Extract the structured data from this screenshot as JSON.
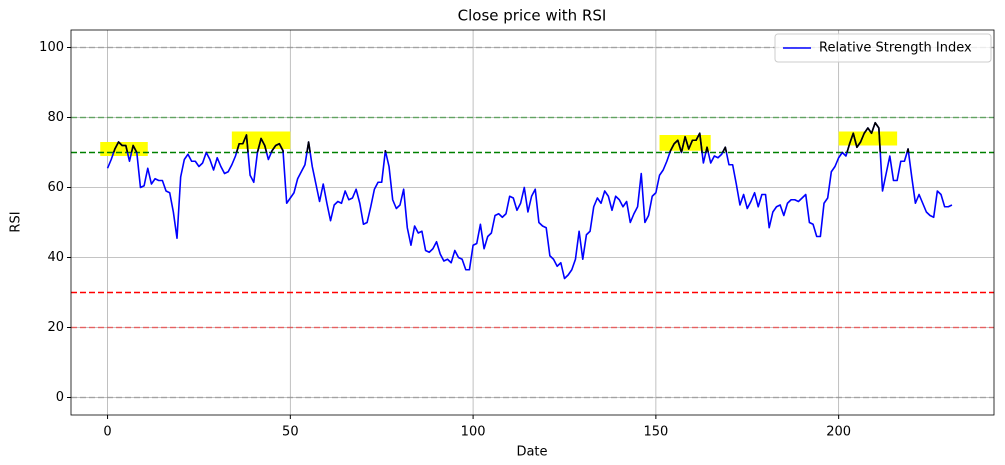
{
  "chart_data": {
    "type": "line",
    "title": "Close price with RSI",
    "x_label": "Date",
    "y_label": "RSI",
    "x": [
      0,
      1,
      2,
      3,
      4,
      5,
      6,
      7,
      8,
      9,
      10,
      11,
      12,
      13,
      14,
      15,
      16,
      17,
      18,
      19,
      20,
      21,
      22,
      23,
      24,
      25,
      26,
      27,
      28,
      29,
      30,
      31,
      32,
      33,
      34,
      35,
      36,
      37,
      38,
      39,
      40,
      41,
      42,
      43,
      44,
      45,
      46,
      47,
      48,
      49,
      50,
      51,
      52,
      53,
      54,
      55,
      56,
      57,
      58,
      59,
      60,
      61,
      62,
      63,
      64,
      65,
      66,
      67,
      68,
      69,
      70,
      71,
      72,
      73,
      74,
      75,
      76,
      77,
      78,
      79,
      80,
      81,
      82,
      83,
      84,
      85,
      86,
      87,
      88,
      89,
      90,
      91,
      92,
      93,
      94,
      95,
      96,
      97,
      98,
      99,
      100,
      101,
      102,
      103,
      104,
      105,
      106,
      107,
      108,
      109,
      110,
      111,
      112,
      113,
      114,
      115,
      116,
      117,
      118,
      119,
      120,
      121,
      122,
      123,
      124,
      125,
      126,
      127,
      128,
      129,
      130,
      131,
      132,
      133,
      134,
      135,
      136,
      137,
      138,
      139,
      140,
      141,
      142,
      143,
      144,
      145,
      146,
      147,
      148,
      149,
      150,
      151,
      152,
      153,
      154,
      155,
      156,
      157,
      158,
      159,
      160,
      161,
      162,
      163,
      164,
      165,
      166,
      167,
      168,
      169,
      170,
      171,
      172,
      173,
      174,
      175,
      176,
      177,
      178,
      179,
      180,
      181,
      182,
      183,
      184,
      185,
      186,
      187,
      188,
      189,
      190,
      191,
      192,
      193,
      194,
      195,
      196,
      197,
      198,
      199,
      200,
      201,
      202,
      203,
      204,
      205,
      206,
      207,
      208,
      209,
      210,
      211,
      212,
      213,
      214,
      215,
      216,
      217,
      218,
      219,
      220,
      221,
      222,
      223,
      224,
      225,
      226,
      227,
      228,
      229,
      230,
      231
    ],
    "series": [
      {
        "name": "Relative Strength Index",
        "color": "#0000ff",
        "values": [
          65.5,
          68,
          71,
          73,
          72,
          72,
          67.5,
          72,
          70,
          60,
          60.5,
          65.5,
          61,
          62.5,
          62,
          62,
          59,
          58.5,
          53,
          45.5,
          63,
          68,
          69.5,
          67.5,
          67.5,
          66,
          67,
          70,
          68,
          65,
          68.5,
          66,
          64,
          64.5,
          66.5,
          69,
          72.5,
          72.5,
          75,
          63.5,
          61.5,
          70,
          74,
          72,
          68,
          70.5,
          72,
          72.5,
          70.5,
          55.5,
          57,
          58.5,
          62.5,
          64.5,
          66.5,
          73,
          66,
          61,
          56,
          61,
          55.5,
          50.5,
          55,
          56,
          55.5,
          59,
          56.5,
          57,
          59.5,
          55.5,
          49.5,
          50,
          54.5,
          59.5,
          61.5,
          61.5,
          70.5,
          66,
          56.5,
          54,
          55,
          59.5,
          48.5,
          43.5,
          49,
          47,
          47.5,
          42,
          41.5,
          42.5,
          44.5,
          41,
          39,
          39.5,
          38.5,
          42,
          40,
          39.5,
          36.5,
          36.5,
          43.5,
          44,
          49.5,
          42.5,
          46,
          47,
          52,
          52.5,
          51.5,
          52.5,
          57.5,
          57,
          53.5,
          55.5,
          60,
          53,
          57.5,
          59.5,
          50,
          49,
          48.5,
          40.5,
          39.5,
          37.5,
          38.5,
          34,
          35,
          36.5,
          39.5,
          47.5,
          39.5,
          46.5,
          47.5,
          54.5,
          57,
          55.5,
          59,
          57.5,
          53.5,
          57.5,
          56.5,
          54.5,
          56,
          50,
          52.5,
          54.5,
          64,
          50,
          52,
          57.5,
          58.5,
          63.5,
          65,
          67.5,
          70.5,
          72.5,
          73.5,
          70,
          74.5,
          71,
          73.5,
          73.5,
          75.5,
          67,
          71.5,
          67,
          69,
          68.5,
          69.5,
          71.5,
          66.5,
          66.5,
          61,
          55,
          58,
          54,
          56,
          58.5,
          54.5,
          58,
          58,
          48.5,
          53,
          54.5,
          55,
          52,
          55.5,
          56.5,
          56.5,
          56,
          57,
          58,
          50,
          49.5,
          46,
          46,
          55.5,
          57,
          64.5,
          66,
          68.5,
          70,
          69,
          72.5,
          75.5,
          71.5,
          73,
          75.5,
          77,
          75.5,
          78.5,
          77,
          59,
          64,
          69,
          62,
          62,
          67.5,
          67.5,
          71,
          63,
          55.5,
          58,
          55.5,
          53,
          52,
          51.5,
          59,
          58,
          54.5,
          54.5,
          55
        ]
      }
    ],
    "overbought": {
      "level": 70,
      "color": "#000000"
    },
    "highlight_regions": [
      {
        "x": [
          -2,
          11
        ],
        "y": [
          69,
          73
        ],
        "color": "#ffff00"
      },
      {
        "x": [
          34,
          50
        ],
        "y": [
          71,
          76
        ],
        "color": "#ffff00"
      },
      {
        "x": [
          151,
          165
        ],
        "y": [
          70.5,
          75
        ],
        "color": "#ffff00"
      },
      {
        "x": [
          200,
          216
        ],
        "y": [
          72,
          76
        ],
        "color": "#ffff00"
      }
    ],
    "reference_lines": [
      {
        "y": 100,
        "color": "#808080",
        "opacity": 0.5
      },
      {
        "y": 80,
        "color": "#008000",
        "opacity": 0.5
      },
      {
        "y": 70,
        "color": "#008000",
        "opacity": 1
      },
      {
        "y": 30,
        "color": "#ff0000",
        "opacity": 1
      },
      {
        "y": 20,
        "color": "#ff0000",
        "opacity": 0.5
      },
      {
        "y": 0,
        "color": "#808080",
        "opacity": 0.5
      }
    ],
    "xlim": [
      -10,
      242.5
    ],
    "ylim": [
      -5,
      105
    ],
    "xticks": [
      0,
      50,
      100,
      150,
      200
    ],
    "yticks": [
      0,
      20,
      40,
      60,
      80,
      100
    ],
    "grid": true,
    "legend": "upper right"
  }
}
